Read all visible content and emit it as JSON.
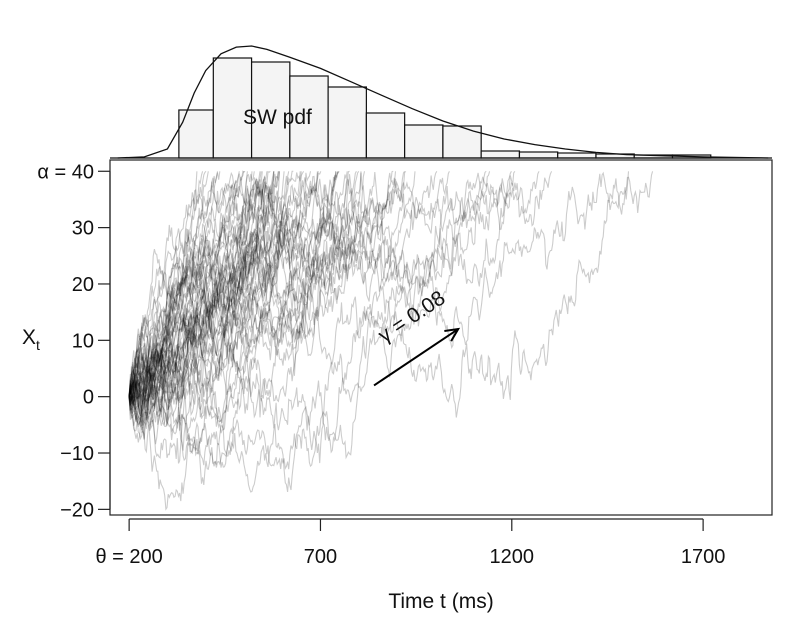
{
  "chart_data": {
    "type": "line",
    "xlabel": "Time t (ms)",
    "ylabel": "X",
    "ylabel_subscript": "t",
    "xlim": [
      150,
      1880
    ],
    "ylim": [
      -21,
      42
    ],
    "x_ticks": [
      {
        "value": 200,
        "label": "θ = 200"
      },
      {
        "value": 700,
        "label": "700"
      },
      {
        "value": 1200,
        "label": "1200"
      },
      {
        "value": 1700,
        "label": "1700"
      }
    ],
    "y_ticks": [
      {
        "value": 40,
        "label": "α = 40"
      },
      {
        "value": 30,
        "label": "30"
      },
      {
        "value": 20,
        "label": "20"
      },
      {
        "value": 10,
        "label": "10"
      },
      {
        "value": 0,
        "label": "0"
      },
      {
        "value": -10,
        "label": "−10"
      },
      {
        "value": -20,
        "label": "−20"
      }
    ],
    "grid": false,
    "legend": "none",
    "paths": {
      "description_free_params": true,
      "count": 60,
      "start_time": 200,
      "start_value": 0,
      "threshold": 40,
      "color": "#000000",
      "opacity": 0.2
    },
    "drift_annotation": {
      "text": "γ = 0.08",
      "from": {
        "x": 840,
        "y": 2
      },
      "to": {
        "x": 1060,
        "y": 12
      }
    },
    "histogram": {
      "label": "SW pdf",
      "bin_edges": [
        330,
        420,
        520,
        620,
        720,
        820,
        920,
        1020,
        1120,
        1220,
        1320,
        1420,
        1520,
        1620,
        1720
      ],
      "heights": [
        0.48,
        1.0,
        0.96,
        0.82,
        0.71,
        0.45,
        0.33,
        0.32,
        0.07,
        0.06,
        0.05,
        0.04,
        0.03,
        0.03
      ],
      "pdf_curve": [
        [
          170,
          0
        ],
        [
          240,
          0.01
        ],
        [
          300,
          0.08
        ],
        [
          340,
          0.32
        ],
        [
          370,
          0.58
        ],
        [
          400,
          0.78
        ],
        [
          440,
          0.93
        ],
        [
          480,
          0.99
        ],
        [
          520,
          1.0
        ],
        [
          560,
          0.97
        ],
        [
          620,
          0.9
        ],
        [
          700,
          0.8
        ],
        [
          780,
          0.68
        ],
        [
          860,
          0.56
        ],
        [
          940,
          0.44
        ],
        [
          1020,
          0.33
        ],
        [
          1100,
          0.24
        ],
        [
          1180,
          0.17
        ],
        [
          1260,
          0.12
        ],
        [
          1340,
          0.08
        ],
        [
          1420,
          0.05
        ],
        [
          1500,
          0.03
        ],
        [
          1600,
          0.02
        ],
        [
          1700,
          0.01
        ],
        [
          1870,
          0
        ]
      ]
    }
  }
}
